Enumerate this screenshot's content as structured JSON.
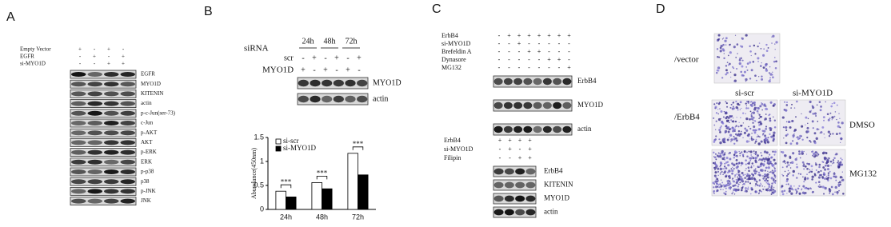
{
  "A": {
    "label": "A",
    "conditions": [
      {
        "name": "Empty Vector",
        "signs": [
          "+",
          "-",
          "+",
          "-"
        ]
      },
      {
        "name": "EGFR",
        "signs": [
          "-",
          "+",
          "-",
          "+"
        ]
      },
      {
        "name": "si-MYO1D",
        "signs": [
          "-",
          "-",
          "+",
          "+"
        ]
      }
    ],
    "blots": [
      "EGFR",
      "MYO1D",
      "KITENIN",
      "actin",
      "p-c-Jun(ser-73)",
      "c-Jun",
      "p-AKT",
      "AKT",
      "p-ERK",
      "ERK",
      "p-p38",
      "p38",
      "p-JNK",
      "JNK"
    ]
  },
  "B": {
    "label": "B",
    "treatment": "siRNA",
    "times": [
      "24h",
      "48h",
      "72h"
    ],
    "conditions": [
      {
        "name": "scr",
        "signs": [
          "-",
          "+",
          "-",
          "+",
          "-",
          "+"
        ]
      },
      {
        "name": "MYO1D",
        "signs": [
          "+",
          "-",
          "+",
          "-",
          "+",
          "-"
        ]
      }
    ],
    "blots": [
      "MYO1D",
      "actin"
    ],
    "chart": {
      "type": "bar",
      "y_label": "Abundance(450nm)",
      "categories": [
        "24h",
        "48h",
        "72h"
      ],
      "series": [
        {
          "name": "si-scr",
          "color": "#ffffff",
          "values": [
            0.38,
            0.56,
            1.17
          ]
        },
        {
          "name": "si-MYO1D",
          "color": "#000000",
          "values": [
            0.26,
            0.43,
            0.72
          ]
        }
      ],
      "ylim": [
        0,
        1.5
      ],
      "yticks": [
        0,
        0.5,
        1,
        1.5
      ],
      "significance": [
        "***",
        "***",
        "***"
      ]
    }
  },
  "C": {
    "label": "C",
    "top": {
      "conditions": [
        {
          "name": "ErbB4",
          "signs": [
            "-",
            "+",
            "+",
            "+",
            "+",
            "+",
            "+",
            "+"
          ]
        },
        {
          "name": "si-MYO1D",
          "signs": [
            "-",
            "-",
            "+",
            "-",
            "-",
            "-",
            "-",
            "-"
          ]
        },
        {
          "name": "Brefeldin A",
          "signs": [
            "-",
            "-",
            "-",
            "+",
            "+",
            "-",
            "-",
            "-"
          ]
        },
        {
          "name": "Dynasore",
          "signs": [
            "-",
            "-",
            "-",
            "-",
            "-",
            "+",
            "+",
            "-"
          ]
        },
        {
          "name": "MG132",
          "signs": [
            "-",
            "-",
            "-",
            "-",
            "-",
            "-",
            "-",
            "+"
          ]
        }
      ],
      "blots": [
        "ErbB4",
        "MYO1D",
        "actin"
      ]
    },
    "bottom": {
      "conditions": [
        {
          "name": "ErbB4",
          "signs": [
            "+",
            "+",
            "+",
            "+"
          ]
        },
        {
          "name": "si-MYO1D",
          "signs": [
            "-",
            "+",
            "-",
            "+"
          ]
        },
        {
          "name": "Filipin",
          "signs": [
            "-",
            "-",
            "+",
            "+"
          ]
        }
      ],
      "blots": [
        "ErbB4",
        "KITENIN",
        "MYO1D",
        "actin"
      ]
    }
  },
  "D": {
    "label": "D",
    "rows": [
      "/vector",
      "/ErbB4"
    ],
    "columns": [
      "si-scr",
      "si-MYO1D"
    ],
    "treatments": [
      "DMSO",
      "MG132"
    ]
  }
}
